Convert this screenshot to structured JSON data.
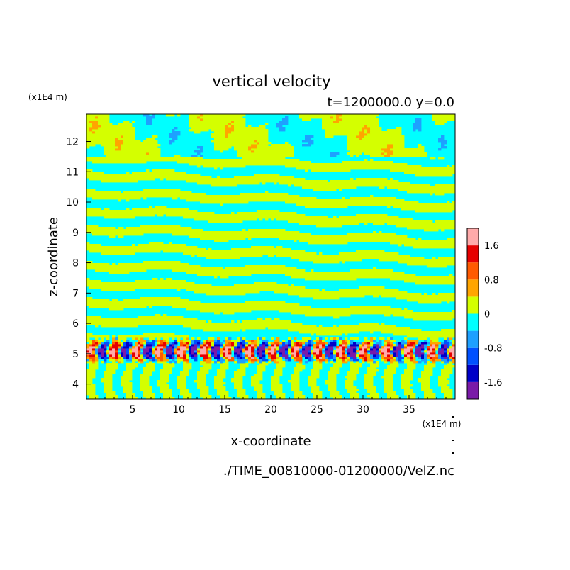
{
  "chart_data": {
    "type": "heatmap",
    "title": "vertical velocity",
    "subtitle": "t=1200000.0 y=0.0",
    "xlabel": "x-coordinate",
    "ylabel": "z-coordinate",
    "x_unit": "(x1E4 m)",
    "y_unit": "(x1E4 m)",
    "footer": "./TIME_00810000-01200000/VelZ.nc",
    "xlim": [
      0,
      40
    ],
    "ylim": [
      3.5,
      12.9
    ],
    "x_ticks": [
      5,
      10,
      15,
      20,
      25,
      30,
      35
    ],
    "y_ticks": [
      4,
      5,
      6,
      7,
      8,
      9,
      10,
      11,
      12
    ],
    "colorbar": {
      "levels": [
        -2.0,
        -1.6,
        -1.2,
        -0.8,
        -0.4,
        0,
        0.4,
        0.8,
        1.2,
        1.6,
        2.0
      ],
      "colors": [
        "#7a1aa8",
        "#0000c8",
        "#0050ff",
        "#1ea0ff",
        "#00ffff",
        "#d4ff00",
        "#ffa500",
        "#ff5a00",
        "#e60000",
        "#ffaaaa"
      ],
      "tick_labels": [
        "1.6",
        "0.8",
        "0",
        "-0.8",
        "-1.6"
      ],
      "tick_values": [
        1.6,
        0.8,
        0,
        -0.8,
        -1.6
      ]
    },
    "description_regions": [
      {
        "z_range": [
          3.5,
          4.7
        ],
        "pattern": "mostly near-zero with vertical cyan/yellow streaks"
      },
      {
        "z_range": [
          4.7,
          5.5
        ],
        "pattern": "strong alternating updrafts and downdrafts (-2.0 to 2.0)"
      },
      {
        "z_range": [
          5.5,
          11.5
        ],
        "pattern": "tilted wave bands alternating -0.4..0 and 0..0.4"
      },
      {
        "z_range": [
          11.5,
          12.9
        ],
        "pattern": "large patches of weak positive and negative velocity"
      }
    ]
  }
}
